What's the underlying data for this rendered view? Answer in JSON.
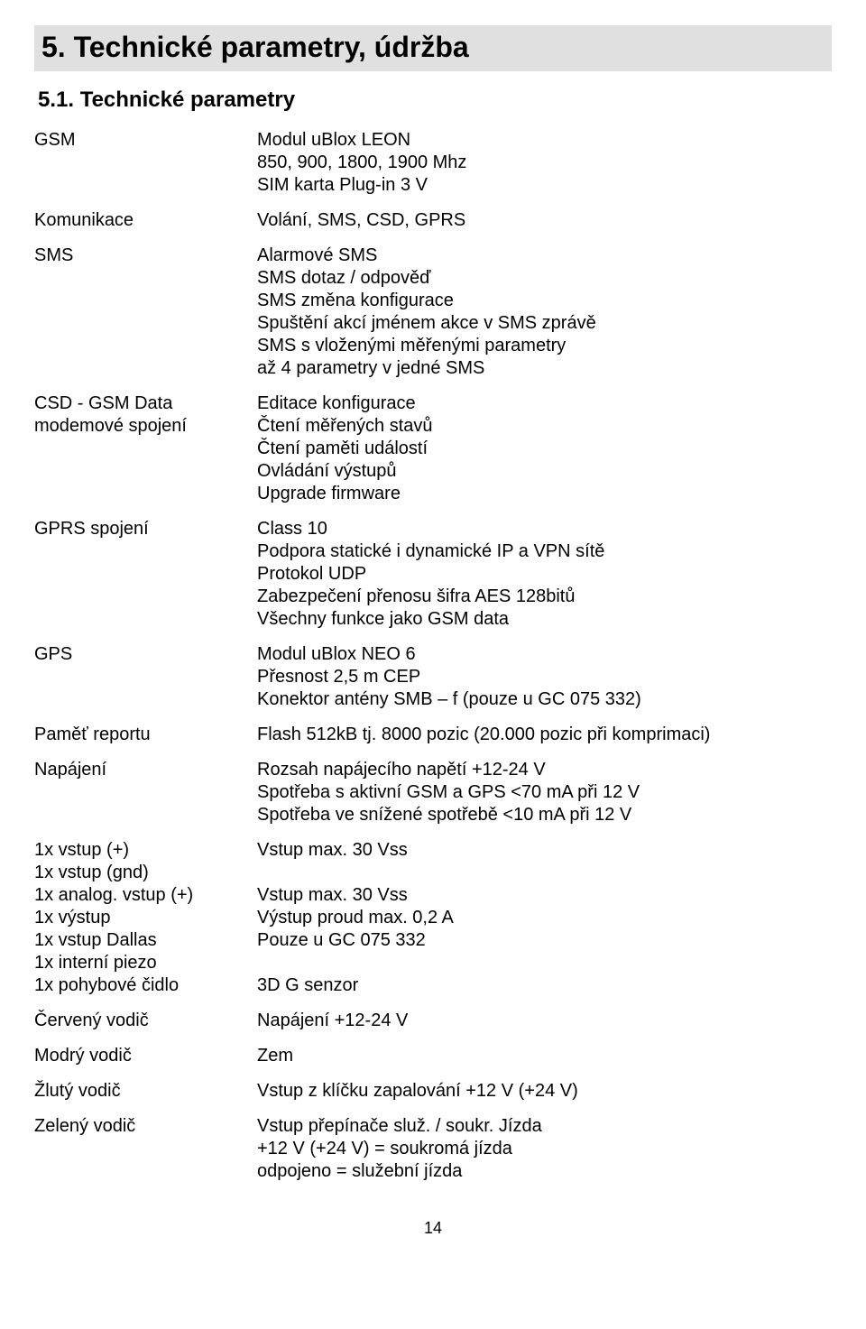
{
  "headings": {
    "h1": "5. Technické parametry, údržba",
    "h2": "5.1. Technické parametry"
  },
  "rows": [
    {
      "label": "GSM",
      "value": "Modul uBlox LEON\n850, 900, 1800, 1900  Mhz\nSIM karta Plug-in 3 V"
    },
    {
      "label": "Komunikace",
      "value": "Volání, SMS, CSD, GPRS"
    },
    {
      "label": "SMS",
      "value": "Alarmové SMS\nSMS dotaz / odpověď\nSMS změna konfigurace\nSpuštění akcí jménem akce v SMS zprávě\nSMS s vloženými měřenými parametry\naž 4 parametry v jedné SMS"
    },
    {
      "label": "CSD - GSM Data\nmodemové spojení",
      "value": "Editace konfigurace\nČtení měřených stavů\nČtení paměti událostí\nOvládání výstupů\nUpgrade firmware"
    },
    {
      "label": "GPRS spojení",
      "value": "Class 10\nPodpora statické i dynamické IP a VPN sítě\nProtokol UDP\nZabezpečení přenosu šifra AES 128bitů\nVšechny funkce jako GSM data"
    },
    {
      "label": "GPS",
      "value": "Modul uBlox NEO 6\nPřesnost 2,5 m CEP\nKonektor antény SMB – f (pouze u GC 075 332)"
    },
    {
      "label": "Paměť reportu",
      "value": "Flash 512kB tj. 8000 pozic (20.000 pozic při komprimaci)"
    },
    {
      "label": "Napájení",
      "value": "Rozsah napájecího napětí +12-24 V\nSpotřeba s aktivní GSM a GPS <70 mA při 12 V\nSpotřeba ve snížené spotřebě <10 mA při 12 V"
    },
    {
      "label": "1x vstup (+)\n1x vstup (gnd)\n1x analog. vstup (+)\n1x výstup\n1x vstup Dallas\n1x interní piezo\n1x pohybové čidlo",
      "value": "Vstup max. 30 Vss\n\nVstup max. 30 Vss\nVýstup proud max. 0,2 A\nPouze u GC 075 332\n\n3D G senzor"
    },
    {
      "label": "Červený vodič",
      "value": "Napájení +12-24 V"
    },
    {
      "label": "Modrý vodič",
      "value": "Zem"
    },
    {
      "label": "Žlutý vodič",
      "value": "Vstup z klíčku zapalování +12 V (+24 V)"
    },
    {
      "label": "Zelený vodič",
      "value": "Vstup přepínače služ. / soukr. Jízda\n+12 V (+24 V) = soukromá jízda\nodpojeno = služební jízda"
    }
  ],
  "page_number": "14"
}
